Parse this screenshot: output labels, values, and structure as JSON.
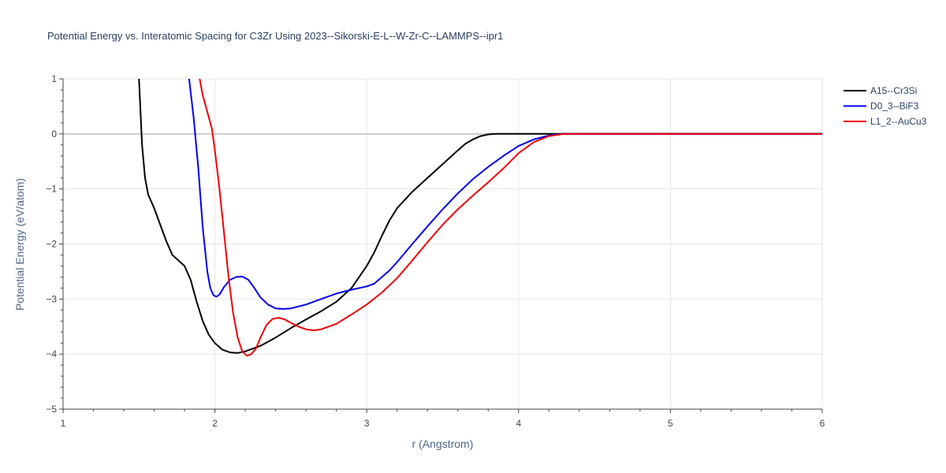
{
  "chart_data": {
    "type": "line",
    "title": "Potential Energy vs. Interatomic Spacing for C3Zr Using 2023--Sikorski-E-L--W-Zr-C--LAMMPS--ipr1",
    "xlabel": "r (Angstrom)",
    "ylabel": "Potential Energy (eV/atom)",
    "xlim": [
      1,
      6
    ],
    "ylim": [
      -5,
      1
    ],
    "x_ticks": [
      1,
      2,
      3,
      4,
      5,
      6
    ],
    "y_ticks": [
      1,
      0,
      -1,
      -2,
      -3,
      -4,
      -5
    ],
    "x_tick_labels": [
      "1",
      "2",
      "3",
      "4",
      "5",
      "6"
    ],
    "y_tick_labels": [
      "1",
      "0",
      "−1",
      "−2",
      "−3",
      "−4",
      "−5"
    ],
    "grid": true,
    "legend_position": "top-right",
    "series": [
      {
        "name": "A15--Cr3Si",
        "color": "#000000",
        "points": [
          [
            1.5,
            1.0
          ],
          [
            1.52,
            -0.2
          ],
          [
            1.54,
            -0.8
          ],
          [
            1.56,
            -1.1
          ],
          [
            1.6,
            -1.35
          ],
          [
            1.64,
            -1.65
          ],
          [
            1.68,
            -1.95
          ],
          [
            1.72,
            -2.2
          ],
          [
            1.76,
            -2.3
          ],
          [
            1.8,
            -2.4
          ],
          [
            1.84,
            -2.65
          ],
          [
            1.88,
            -3.05
          ],
          [
            1.92,
            -3.4
          ],
          [
            1.96,
            -3.65
          ],
          [
            2.0,
            -3.8
          ],
          [
            2.05,
            -3.92
          ],
          [
            2.1,
            -3.97
          ],
          [
            2.15,
            -3.98
          ],
          [
            2.2,
            -3.95
          ],
          [
            2.3,
            -3.85
          ],
          [
            2.4,
            -3.7
          ],
          [
            2.5,
            -3.53
          ],
          [
            2.6,
            -3.37
          ],
          [
            2.7,
            -3.22
          ],
          [
            2.8,
            -3.05
          ],
          [
            2.9,
            -2.8
          ],
          [
            3.0,
            -2.4
          ],
          [
            3.05,
            -2.15
          ],
          [
            3.1,
            -1.85
          ],
          [
            3.15,
            -1.57
          ],
          [
            3.2,
            -1.35
          ],
          [
            3.3,
            -1.05
          ],
          [
            3.4,
            -0.8
          ],
          [
            3.5,
            -0.55
          ],
          [
            3.6,
            -0.3
          ],
          [
            3.65,
            -0.18
          ],
          [
            3.7,
            -0.1
          ],
          [
            3.75,
            -0.04
          ],
          [
            3.8,
            -0.01
          ],
          [
            3.85,
            0.0
          ],
          [
            4.0,
            0.0
          ],
          [
            5.0,
            0.0
          ],
          [
            6.0,
            0.0
          ]
        ]
      },
      {
        "name": "D0_3--BiF3",
        "color": "#0000ee",
        "points": [
          [
            1.83,
            1.0
          ],
          [
            1.86,
            0.3
          ],
          [
            1.89,
            -0.6
          ],
          [
            1.92,
            -1.7
          ],
          [
            1.95,
            -2.5
          ],
          [
            1.97,
            -2.8
          ],
          [
            1.99,
            -2.93
          ],
          [
            2.01,
            -2.96
          ],
          [
            2.03,
            -2.92
          ],
          [
            2.06,
            -2.78
          ],
          [
            2.1,
            -2.65
          ],
          [
            2.14,
            -2.6
          ],
          [
            2.18,
            -2.59
          ],
          [
            2.22,
            -2.65
          ],
          [
            2.26,
            -2.8
          ],
          [
            2.3,
            -2.97
          ],
          [
            2.35,
            -3.1
          ],
          [
            2.4,
            -3.17
          ],
          [
            2.45,
            -3.18
          ],
          [
            2.5,
            -3.17
          ],
          [
            2.6,
            -3.1
          ],
          [
            2.7,
            -3.0
          ],
          [
            2.8,
            -2.9
          ],
          [
            2.9,
            -2.83
          ],
          [
            3.0,
            -2.77
          ],
          [
            3.05,
            -2.72
          ],
          [
            3.1,
            -2.6
          ],
          [
            3.15,
            -2.48
          ],
          [
            3.2,
            -2.33
          ],
          [
            3.3,
            -2.0
          ],
          [
            3.4,
            -1.68
          ],
          [
            3.5,
            -1.37
          ],
          [
            3.6,
            -1.08
          ],
          [
            3.7,
            -0.82
          ],
          [
            3.8,
            -0.6
          ],
          [
            3.9,
            -0.4
          ],
          [
            4.0,
            -0.22
          ],
          [
            4.1,
            -0.1
          ],
          [
            4.2,
            -0.03
          ],
          [
            4.25,
            -0.01
          ],
          [
            4.3,
            0.0
          ],
          [
            5.0,
            0.0
          ],
          [
            6.0,
            0.0
          ]
        ]
      },
      {
        "name": "L1_2--AuCu3",
        "color": "#ee0000",
        "points": [
          [
            1.9,
            1.0
          ],
          [
            1.92,
            0.7
          ],
          [
            1.95,
            0.4
          ],
          [
            1.98,
            0.1
          ],
          [
            2.0,
            -0.3
          ],
          [
            2.03,
            -1.0
          ],
          [
            2.06,
            -1.8
          ],
          [
            2.09,
            -2.6
          ],
          [
            2.12,
            -3.25
          ],
          [
            2.15,
            -3.7
          ],
          [
            2.18,
            -3.95
          ],
          [
            2.21,
            -4.03
          ],
          [
            2.24,
            -4.0
          ],
          [
            2.27,
            -3.9
          ],
          [
            2.3,
            -3.7
          ],
          [
            2.34,
            -3.47
          ],
          [
            2.38,
            -3.36
          ],
          [
            2.42,
            -3.34
          ],
          [
            2.46,
            -3.37
          ],
          [
            2.5,
            -3.43
          ],
          [
            2.55,
            -3.5
          ],
          [
            2.6,
            -3.55
          ],
          [
            2.65,
            -3.57
          ],
          [
            2.7,
            -3.55
          ],
          [
            2.8,
            -3.45
          ],
          [
            2.9,
            -3.28
          ],
          [
            3.0,
            -3.1
          ],
          [
            3.1,
            -2.88
          ],
          [
            3.2,
            -2.62
          ],
          [
            3.3,
            -2.3
          ],
          [
            3.4,
            -1.97
          ],
          [
            3.5,
            -1.65
          ],
          [
            3.6,
            -1.37
          ],
          [
            3.7,
            -1.12
          ],
          [
            3.8,
            -0.88
          ],
          [
            3.9,
            -0.63
          ],
          [
            4.0,
            -0.35
          ],
          [
            4.1,
            -0.15
          ],
          [
            4.2,
            -0.04
          ],
          [
            4.3,
            0.0
          ],
          [
            5.0,
            0.0
          ],
          [
            6.0,
            0.0
          ]
        ]
      }
    ]
  }
}
